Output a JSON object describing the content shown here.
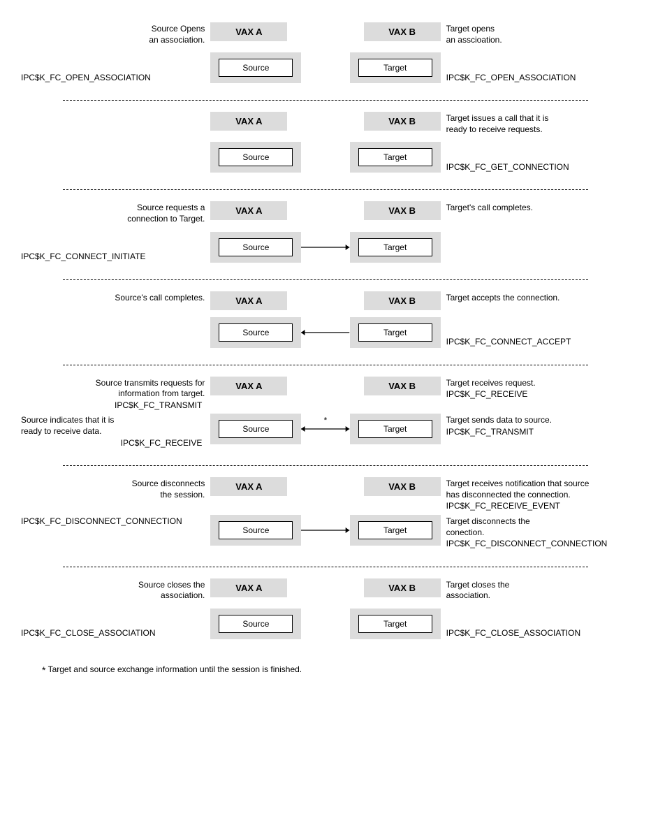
{
  "common": {
    "vax_a": "VAX A",
    "vax_b": "VAX B",
    "source": "Source",
    "target": "Target"
  },
  "colors": {
    "box_bg": "#dcdcdc",
    "page_bg": "#ffffff",
    "border": "#000000"
  },
  "panels": [
    {
      "left_top": "Source Opens\nan association.",
      "right_top": "Target opens\nan asscioation.",
      "left_code": "IPC$K_FC_OPEN_ASSOCIATION",
      "right_code": "IPC$K_FC_OPEN_ASSOCIATION",
      "arrow": "none"
    },
    {
      "left_top": "",
      "right_top": "Target issues a call that it is\nready to receive requests.",
      "left_code": "",
      "right_code": "IPC$K_FC_GET_CONNECTION",
      "arrow": "none"
    },
    {
      "left_top": "Source requests a\nconnection to Target.",
      "right_top": "Target's call completes.",
      "left_code": "IPC$K_FC_CONNECT_INITIATE",
      "right_code": "",
      "arrow": "right"
    },
    {
      "left_top": "Source's call completes.",
      "right_top": "Target accepts the connection.",
      "left_code": "",
      "right_code": "IPC$K_FC_CONNECT_ACCEPT",
      "arrow": "left"
    },
    {
      "left_blocks": [
        {
          "text": "Source transmits requests for\ninformation from target.",
          "code": "IPC$K_FC_TRANSMIT"
        },
        {
          "text": "Source indicates that it is\nready to receive data.",
          "code": "IPC$K_FC_RECEIVE"
        }
      ],
      "right_blocks": [
        {
          "text": "Target receives request.",
          "code": "IPC$K_FC_RECEIVE"
        },
        {
          "text": "Target sends data to source.",
          "code": "IPC$K_FC_TRANSMIT"
        }
      ],
      "arrow": "both",
      "arrow_label": "*"
    },
    {
      "left_top": "Source disconnects\nthe session.",
      "right_blocks": [
        {
          "text": "Target receives notification that source\nhas disconnected the connection.",
          "code": "IPC$K_FC_RECEIVE_EVENT"
        },
        {
          "text": "Target disconnects the\nconection.",
          "code": "IPC$K_FC_DISCONNECT_CONNECTION"
        }
      ],
      "left_code": "IPC$K_FC_DISCONNECT_CONNECTION",
      "arrow": "right"
    },
    {
      "left_top": "Source closes the\nassociation.",
      "right_top": "Target closes the\nassociation.",
      "left_code": "IPC$K_FC_CLOSE_ASSOCIATION",
      "right_code": "IPC$K_FC_CLOSE_ASSOCIATION",
      "arrow": "none"
    }
  ],
  "footnote": {
    "star": "*",
    "text": "Target and source exchange information until the session is finished."
  }
}
